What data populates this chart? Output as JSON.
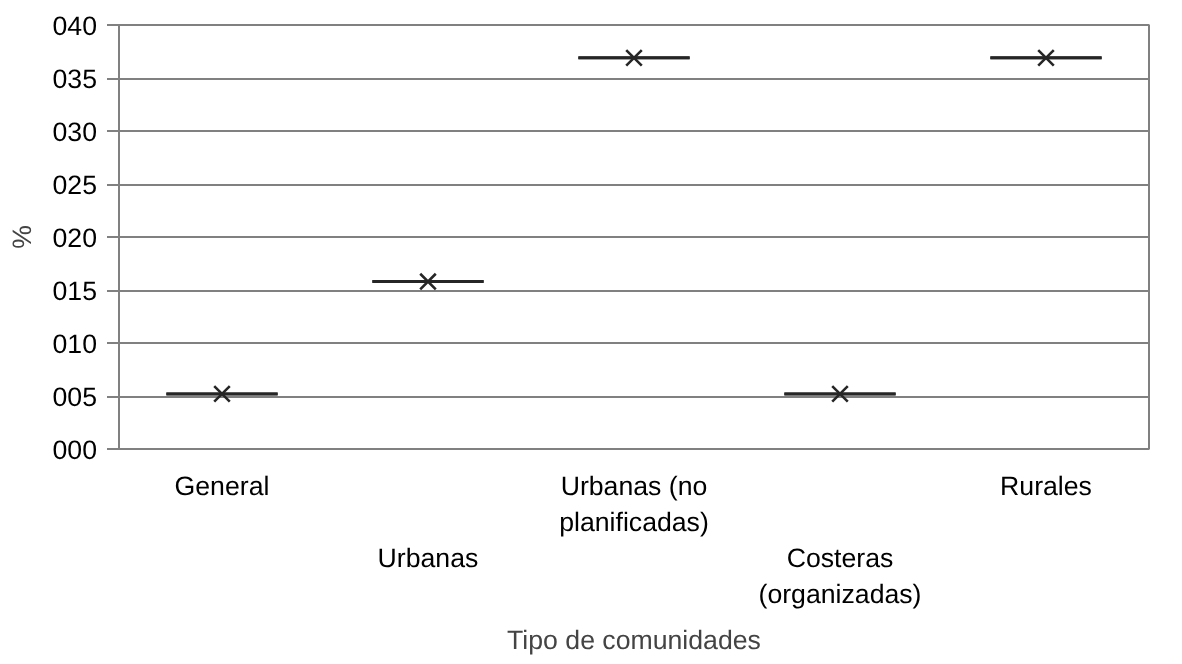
{
  "chart_data": {
    "type": "box",
    "xlabel": "Tipo de comunidades",
    "ylabel": "%",
    "categories": [
      "General",
      "Urbanas",
      "Urbanas (no planificadas)",
      "Costeras (organizadas)",
      "Rurales"
    ],
    "boxes": [
      {
        "low": 5.2,
        "q1": 5.2,
        "median": 5.2,
        "q3": 5.2,
        "high": 5.2,
        "mean": 5.2
      },
      {
        "low": 15.8,
        "q1": 15.8,
        "median": 15.8,
        "q3": 15.8,
        "high": 15.8,
        "mean": 15.8
      },
      {
        "low": 36.9,
        "q1": 36.9,
        "median": 36.9,
        "q3": 36.9,
        "high": 36.9,
        "mean": 36.9
      },
      {
        "low": 5.2,
        "q1": 5.2,
        "median": 5.2,
        "q3": 5.2,
        "high": 5.2,
        "mean": 5.2
      },
      {
        "low": 36.9,
        "q1": 36.9,
        "median": 36.9,
        "q3": 36.9,
        "high": 36.9,
        "mean": 36.9
      }
    ],
    "color": "#262626",
    "marker": "cross",
    "ylim": [
      0,
      40
    ],
    "yticks": [
      {
        "value": 0,
        "label": "000"
      },
      {
        "value": 5,
        "label": "005"
      },
      {
        "value": 10,
        "label": "010"
      },
      {
        "value": 15,
        "label": "015"
      },
      {
        "value": 20,
        "label": "020"
      },
      {
        "value": 25,
        "label": "025"
      },
      {
        "value": 30,
        "label": "030"
      },
      {
        "value": 35,
        "label": "035"
      },
      {
        "value": 40,
        "label": "040"
      }
    ],
    "grid": "y"
  }
}
